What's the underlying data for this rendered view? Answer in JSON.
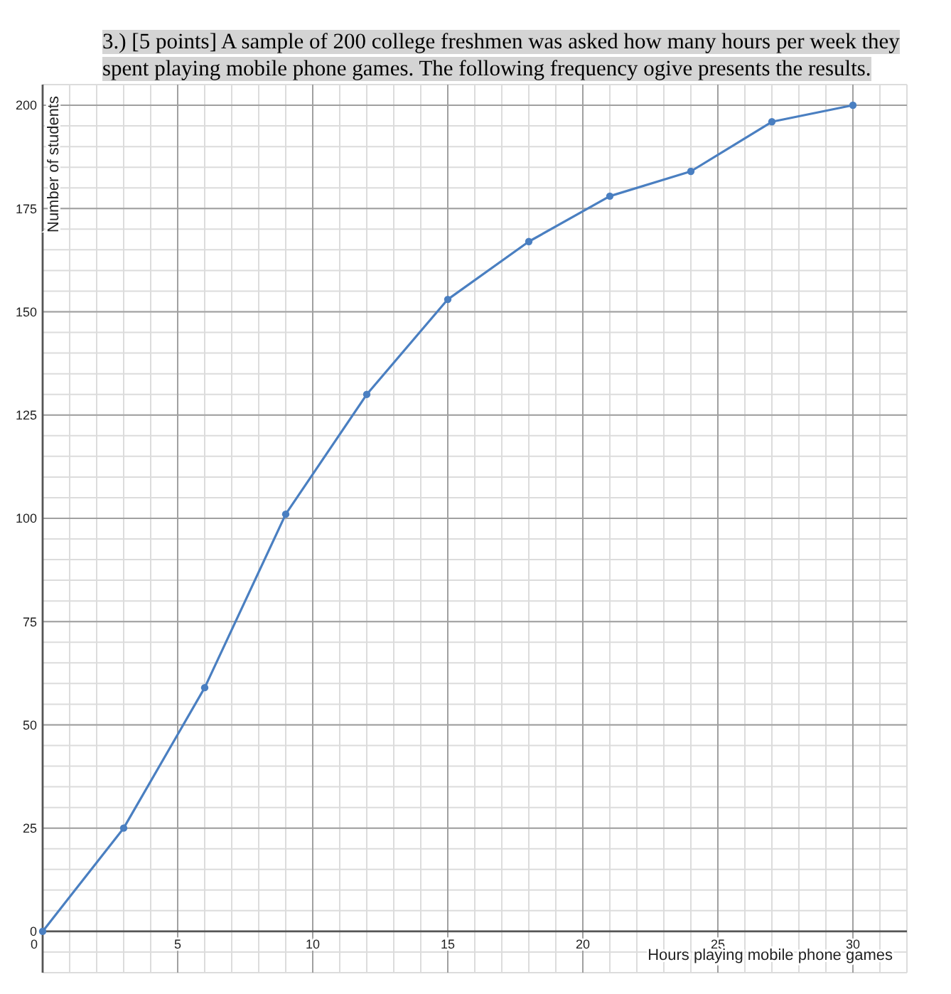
{
  "chart_data": {
    "type": "line",
    "title": "3.) [5 points] A sample of 200 college freshmen was asked how many hours per week they spent playing mobile phone games. The following frequency ogive presents the results.",
    "xlabel": "Hours playing mobile phone games",
    "ylabel": "Number of students",
    "x": [
      0,
      3,
      6,
      9,
      12,
      15,
      18,
      21,
      24,
      27,
      30
    ],
    "series": [
      {
        "color": "#4a7fc1",
        "values": [
          0,
          25,
          59,
          101,
          130,
          153,
          167,
          178,
          184,
          196,
          200
        ]
      }
    ],
    "xlim": [
      0,
      32
    ],
    "ylim": [
      -10,
      205
    ],
    "xticks": [
      0,
      5,
      10,
      15,
      20,
      25,
      30
    ],
    "yticks": [
      0,
      25,
      50,
      75,
      100,
      125,
      150,
      175,
      200
    ],
    "grid": true,
    "marker": "circle",
    "line_style": "solid"
  }
}
